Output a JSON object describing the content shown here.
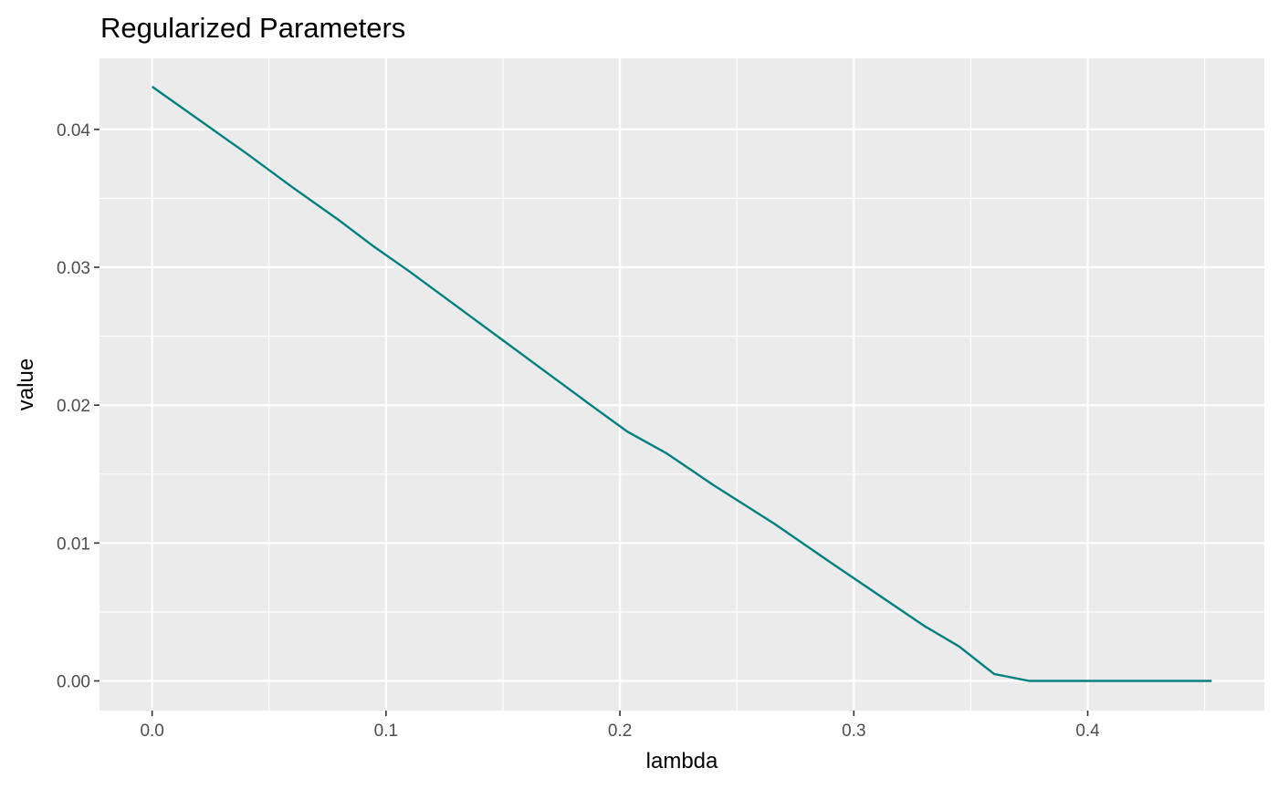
{
  "chart_data": {
    "type": "line",
    "title": "Regularized Parameters",
    "xlabel": "lambda",
    "ylabel": "value",
    "xlim": [
      -0.0225,
      0.4755
    ],
    "ylim": [
      -0.00215,
      0.04515
    ],
    "x_ticks": [
      0.0,
      0.1,
      0.2,
      0.3,
      0.4
    ],
    "x_tick_labels": [
      "0.0",
      "0.1",
      "0.2",
      "0.3",
      "0.4"
    ],
    "x_minor_ticks": [
      0.05,
      0.15,
      0.25,
      0.35,
      0.45
    ],
    "y_ticks": [
      0.0,
      0.01,
      0.02,
      0.03,
      0.04
    ],
    "y_tick_labels": [
      "0.00",
      "0.01",
      "0.02",
      "0.03",
      "0.04"
    ],
    "y_minor_ticks": [
      0.005,
      0.015,
      0.025,
      0.035
    ],
    "grid": true,
    "panel_background": "#ebebeb",
    "series": [
      {
        "color": "#008080",
        "x": [
          0.0,
          0.02,
          0.04,
          0.06,
          0.08,
          0.094,
          0.11,
          0.13,
          0.15,
          0.17,
          0.19,
          0.203,
          0.22,
          0.24,
          0.266,
          0.29,
          0.31,
          0.33,
          0.345,
          0.36,
          0.375,
          0.4,
          0.425,
          0.453
        ],
        "values": [
          0.0431,
          0.0407,
          0.0383,
          0.0358,
          0.0334,
          0.0316,
          0.0297,
          0.0272,
          0.0247,
          0.0222,
          0.0197,
          0.0181,
          0.0165,
          0.0142,
          0.0114,
          0.0086,
          0.0063,
          0.004,
          0.0025,
          0.0005,
          0.0,
          0.0,
          0.0,
          0.0
        ]
      }
    ]
  }
}
